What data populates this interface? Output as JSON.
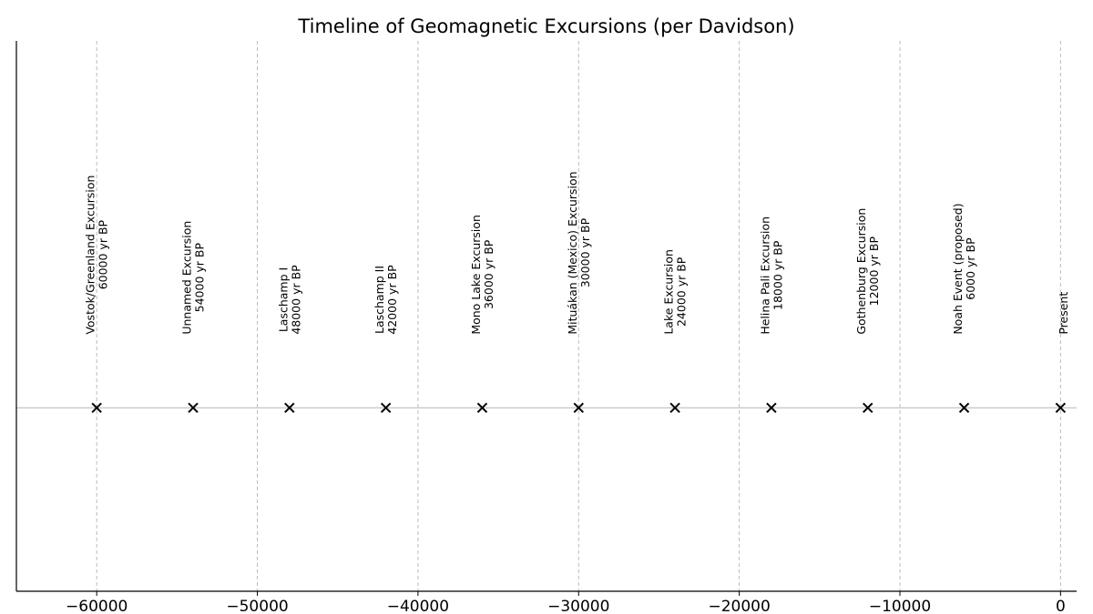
{
  "chart_data": {
    "type": "scatter",
    "title": "Timeline of Geomagnetic Excursions (per Davidson)",
    "x": [
      -60000,
      -54000,
      -48000,
      -42000,
      -36000,
      -30000,
      -24000,
      -18000,
      -12000,
      -6000,
      0
    ],
    "values": [
      0,
      0,
      0,
      0,
      0,
      0,
      0,
      0,
      0,
      0,
      0
    ],
    "labels": [
      "Vostok/Greenland Excursion",
      "Unnamed Excursion",
      "Laschamp I",
      "Laschamp II",
      "Mono Lake Excursion",
      "Mituákan (Mexico) Excursion",
      "Lake Excursion",
      "Helina Pali Excursion",
      "Gothenburg Excursion",
      "Noah Event (proposed)",
      "Present"
    ],
    "sublabels": [
      "60000 yr BP",
      "54000 yr BP",
      "48000 yr BP",
      "42000 yr BP",
      "36000 yr BP",
      "30000 yr BP",
      "24000 yr BP",
      "18000 yr BP",
      "12000 yr BP",
      "6000 yr BP",
      null
    ],
    "color": "#000000",
    "xlim": [
      -65000,
      1000
    ],
    "ylim": [
      -1,
      2
    ],
    "xticks": [
      {
        "value": -60000,
        "label": "−60000"
      },
      {
        "value": -50000,
        "label": "−50000"
      },
      {
        "value": -40000,
        "label": "−40000"
      },
      {
        "value": -30000,
        "label": "−30000"
      },
      {
        "value": -20000,
        "label": "−20000"
      },
      {
        "value": -10000,
        "label": "−10000"
      },
      0
    ],
    "grid": true
  }
}
